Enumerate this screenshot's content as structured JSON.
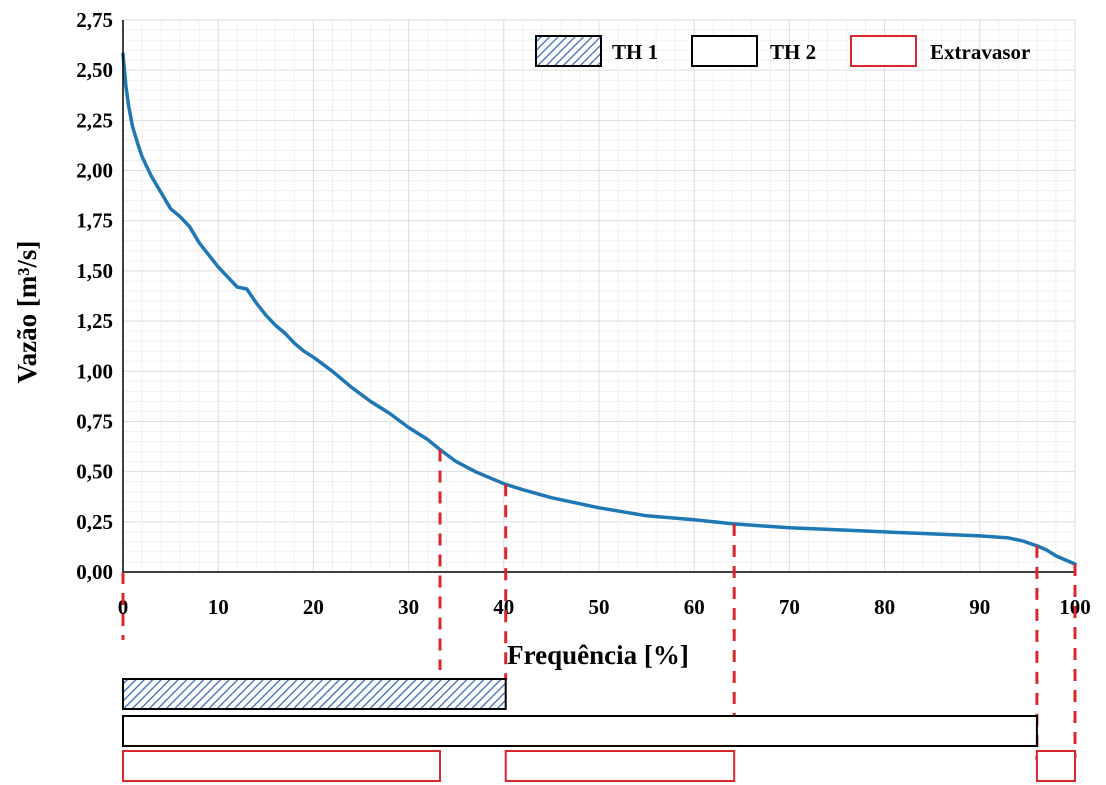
{
  "chart_data": {
    "type": "line",
    "xlabel": "Frequência [%]",
    "ylabel": "Vazão [m³/s]",
    "xlim": [
      0,
      100
    ],
    "ylim": [
      0,
      2.75
    ],
    "x_ticks": [
      "0",
      "10",
      "20",
      "30",
      "40",
      "50",
      "60",
      "70",
      "80",
      "90",
      "100"
    ],
    "y_ticks": [
      "0,00",
      "0,25",
      "0,50",
      "0,75",
      "1,00",
      "1,25",
      "1,50",
      "1,75",
      "2,00",
      "2,25",
      "2,50",
      "2,75"
    ],
    "grid": true,
    "legend_position": "top-right",
    "line_color": "#1f77b4",
    "series": [
      {
        "x": [
          0,
          0.3,
          0.6,
          1,
          1.5,
          2,
          3,
          4,
          5,
          6,
          7,
          8,
          9,
          10,
          11,
          12,
          13,
          14,
          15,
          16,
          17,
          18,
          19,
          20,
          22,
          24,
          26,
          28,
          30,
          32,
          33.3,
          35,
          37,
          40,
          42,
          45,
          50,
          55,
          60,
          64,
          70,
          75,
          80,
          85,
          90,
          93,
          94.5,
          96,
          97,
          98,
          99,
          100
        ],
        "y": [
          2.58,
          2.42,
          2.32,
          2.22,
          2.14,
          2.07,
          1.97,
          1.89,
          1.81,
          1.77,
          1.72,
          1.64,
          1.58,
          1.52,
          1.47,
          1.42,
          1.41,
          1.34,
          1.28,
          1.23,
          1.19,
          1.14,
          1.1,
          1.07,
          1.0,
          0.92,
          0.85,
          0.79,
          0.72,
          0.66,
          0.61,
          0.55,
          0.5,
          0.44,
          0.41,
          0.37,
          0.32,
          0.28,
          0.26,
          0.24,
          0.22,
          0.21,
          0.2,
          0.19,
          0.18,
          0.17,
          0.155,
          0.13,
          0.11,
          0.08,
          0.06,
          0.04
        ]
      }
    ],
    "markers": [
      0,
      33.3,
      40.2,
      64.2,
      96,
      100
    ],
    "legend": [
      {
        "label": "TH 1",
        "style": "hatched"
      },
      {
        "label": "TH 2",
        "style": "outline-black"
      },
      {
        "label": "Extravasor",
        "style": "outline-red"
      }
    ],
    "operation_bars": [
      {
        "label": "TH 1",
        "style": "hatched",
        "ranges": [
          [
            0,
            40.2
          ]
        ]
      },
      {
        "label": "TH 2",
        "style": "outline-black",
        "ranges": [
          [
            0,
            96
          ]
        ]
      },
      {
        "label": "Extravasor",
        "style": "outline-red",
        "ranges": [
          [
            0,
            33.3
          ],
          [
            40.2,
            64.2
          ],
          [
            96,
            100
          ]
        ]
      }
    ],
    "colors": {
      "curve": "#1f77b4",
      "hatch": "#3c6cb0",
      "red": "#d9272e"
    }
  }
}
